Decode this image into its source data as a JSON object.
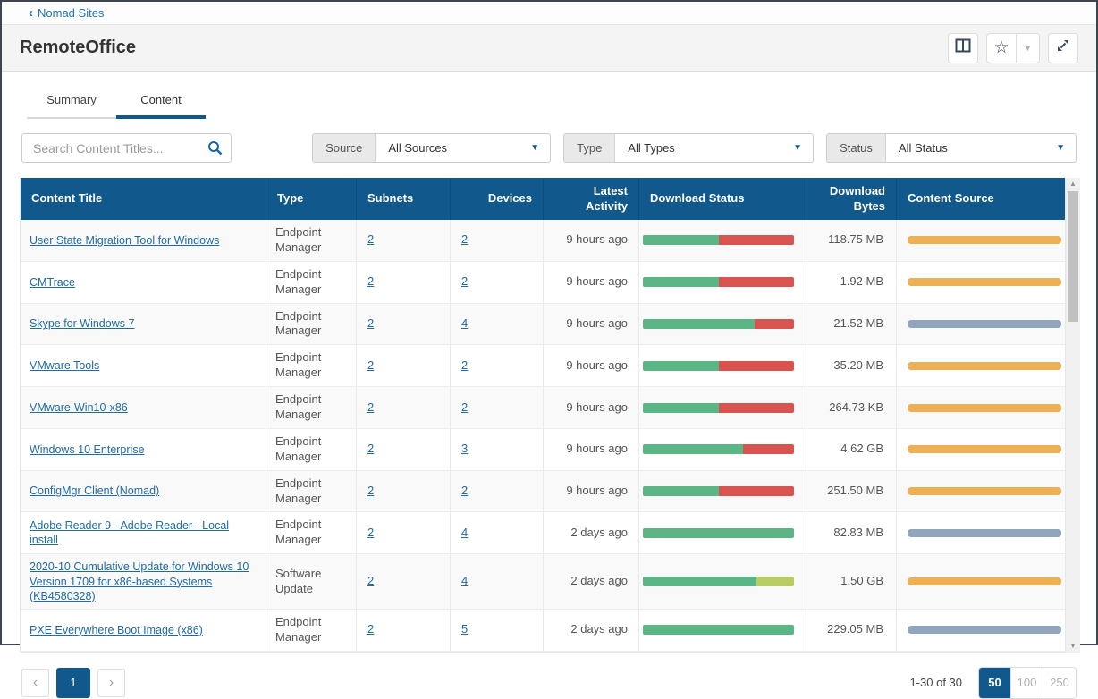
{
  "breadcrumb": {
    "label": "Nomad Sites"
  },
  "page": {
    "title": "RemoteOffice"
  },
  "icons": {
    "breadcrumb_chevron": "‹",
    "star": "☆",
    "caret_down": "▼",
    "chevron_left": "‹",
    "chevron_right": "›",
    "scroll_up": "▲",
    "scroll_down": "▼"
  },
  "tabs": [
    {
      "label": "Summary",
      "active": false
    },
    {
      "label": "Content",
      "active": true
    }
  ],
  "search": {
    "placeholder": "Search Content Titles..."
  },
  "filters": [
    {
      "label": "Source",
      "value": "All Sources"
    },
    {
      "label": "Type",
      "value": "All Types"
    },
    {
      "label": "Status",
      "value": "All Status"
    }
  ],
  "colors": {
    "header_bg": "#11598c",
    "accent_blue": "#11598c",
    "link_blue": "#1f6ba4",
    "bar_green": "#5bb585",
    "bar_red": "#d9534f",
    "bar_light_green": "#b7cc63",
    "bar_orange": "#edb055",
    "bar_slate": "#91a6bd"
  },
  "table": {
    "columns": [
      "Content Title",
      "Type",
      "Subnets",
      "Devices",
      "Latest Activity",
      "Download Status",
      "Download Bytes",
      "Content Source"
    ],
    "rows": [
      {
        "title": "User State Migration Tool for Windows",
        "type": "Endpoint Manager",
        "subnets": "2",
        "devices": "2",
        "latest_activity": "9 hours ago",
        "download_status": [
          {
            "color": "green",
            "pct": 50
          },
          {
            "color": "red",
            "pct": 50
          }
        ],
        "download_bytes": "118.75 MB",
        "content_source": "orange"
      },
      {
        "title": "CMTrace",
        "type": "Endpoint Manager",
        "subnets": "2",
        "devices": "2",
        "latest_activity": "9 hours ago",
        "download_status": [
          {
            "color": "green",
            "pct": 50
          },
          {
            "color": "red",
            "pct": 50
          }
        ],
        "download_bytes": "1.92 MB",
        "content_source": "orange"
      },
      {
        "title": "Skype for Windows 7",
        "type": "Endpoint Manager",
        "subnets": "2",
        "devices": "4",
        "latest_activity": "9 hours ago",
        "download_status": [
          {
            "color": "green",
            "pct": 74
          },
          {
            "color": "red",
            "pct": 26
          }
        ],
        "download_bytes": "21.52 MB",
        "content_source": "slate"
      },
      {
        "title": "VMware Tools",
        "type": "Endpoint Manager",
        "subnets": "2",
        "devices": "2",
        "latest_activity": "9 hours ago",
        "download_status": [
          {
            "color": "green",
            "pct": 50
          },
          {
            "color": "red",
            "pct": 50
          }
        ],
        "download_bytes": "35.20 MB",
        "content_source": "orange"
      },
      {
        "title": "VMware-Win10-x86",
        "type": "Endpoint Manager",
        "subnets": "2",
        "devices": "2",
        "latest_activity": "9 hours ago",
        "download_status": [
          {
            "color": "green",
            "pct": 50
          },
          {
            "color": "red",
            "pct": 50
          }
        ],
        "download_bytes": "264.73 KB",
        "content_source": "orange"
      },
      {
        "title": "Windows 10 Enterprise",
        "type": "Endpoint Manager",
        "subnets": "2",
        "devices": "3",
        "latest_activity": "9 hours ago",
        "download_status": [
          {
            "color": "green",
            "pct": 66
          },
          {
            "color": "red",
            "pct": 34
          }
        ],
        "download_bytes": "4.62 GB",
        "content_source": "orange"
      },
      {
        "title": "ConfigMgr Client (Nomad)",
        "type": "Endpoint Manager",
        "subnets": "2",
        "devices": "2",
        "latest_activity": "9 hours ago",
        "download_status": [
          {
            "color": "green",
            "pct": 50
          },
          {
            "color": "red",
            "pct": 50
          }
        ],
        "download_bytes": "251.50 MB",
        "content_source": "orange"
      },
      {
        "title": "Adobe Reader 9 - Adobe Reader - Local install",
        "type": "Endpoint Manager",
        "subnets": "2",
        "devices": "4",
        "latest_activity": "2 days ago",
        "download_status": [
          {
            "color": "green",
            "pct": 100
          }
        ],
        "download_bytes": "82.83 MB",
        "content_source": "slate"
      },
      {
        "title": "2020-10 Cumulative Update for Windows 10 Version 1709 for x86-based Systems (KB4580328)",
        "type": "Software Update",
        "subnets": "2",
        "devices": "4",
        "latest_activity": "2 days ago",
        "download_status": [
          {
            "color": "green",
            "pct": 75
          },
          {
            "color": "light_green",
            "pct": 25
          }
        ],
        "download_bytes": "1.50 GB",
        "content_source": "orange"
      },
      {
        "title": "PXE Everywhere Boot Image (x86)",
        "type": "Endpoint Manager",
        "subnets": "2",
        "devices": "5",
        "latest_activity": "2 days ago",
        "download_status": [
          {
            "color": "green",
            "pct": 100
          }
        ],
        "download_bytes": "229.05 MB",
        "content_source": "slate"
      }
    ]
  },
  "pagination": {
    "range_label": "1-30 of 30",
    "current_page": "1",
    "page_sizes": [
      "50",
      "100",
      "250"
    ],
    "active_page_size": "50"
  }
}
